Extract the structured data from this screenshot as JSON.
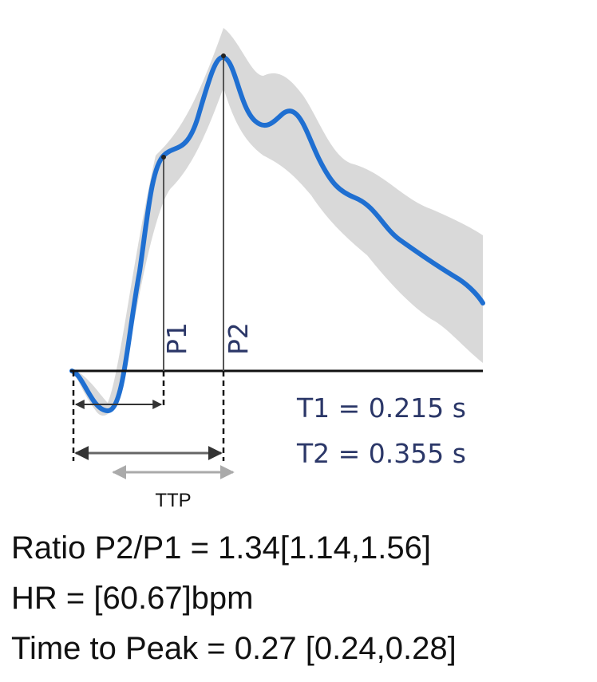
{
  "labels": {
    "p1": "P1",
    "p2": "P2",
    "t1": "T1 = 0.215 s",
    "t2": "T2 = 0.355 s",
    "ttp": "TTP"
  },
  "results": [
    "Ratio P2/P1 = 1.34[1.14,1.56]",
    "HR = [60.67]bpm",
    "Time to Peak = 0.27 [0.24,0.28]"
  ]
}
